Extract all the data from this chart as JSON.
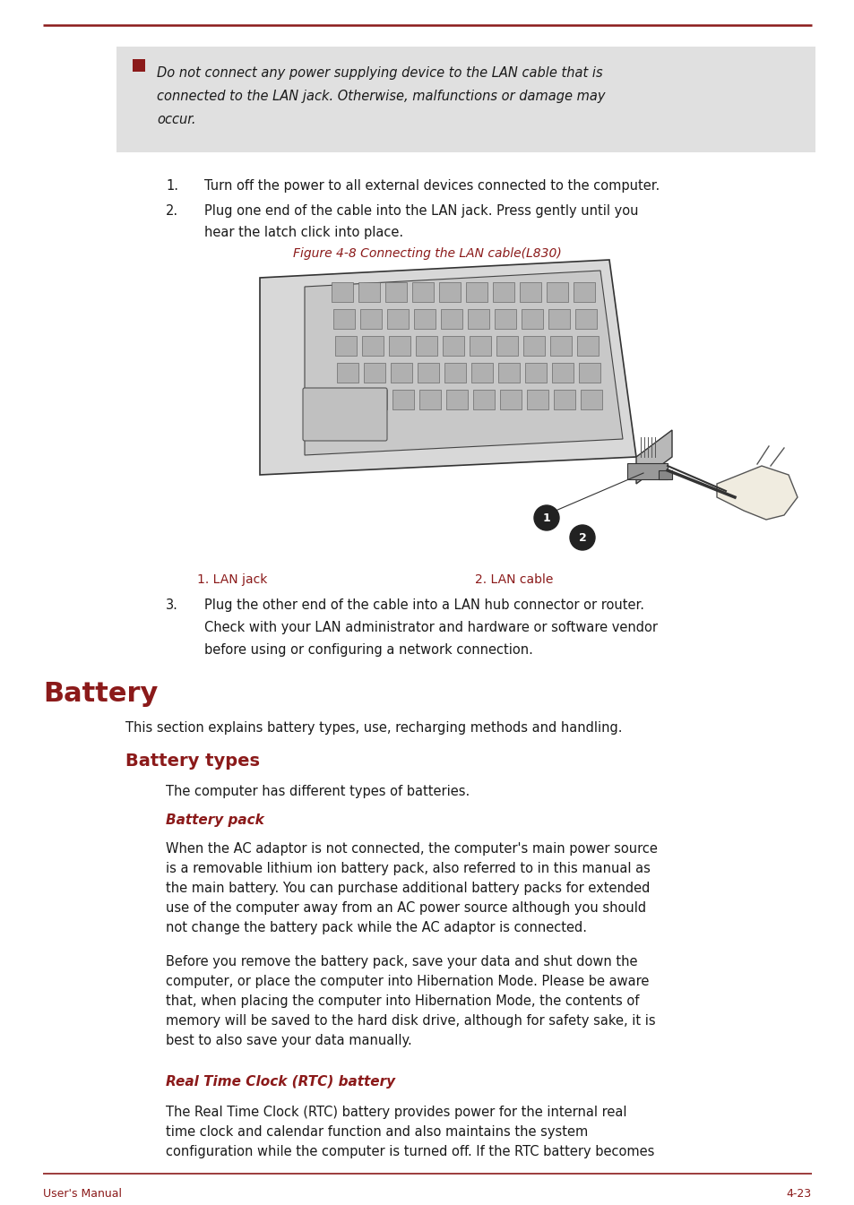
{
  "page_bg": "#ffffff",
  "dark_red": "#8B1A1A",
  "text_color": "#1a1a1a",
  "gray_bg": "#e0e0e0",
  "figure_width": 9.54,
  "figure_height": 13.45,
  "footer_left": "User's Manual",
  "footer_right": "4-23",
  "warning_line1": "Do not connect any power supplying device to the LAN cable that is",
  "warning_line2": "connected to the LAN jack. Otherwise, malfunctions or damage may",
  "warning_line3": "occur.",
  "step1": "Turn off the power to all external devices connected to the computer.",
  "step2a": "Plug one end of the cable into the LAN jack. Press gently until you",
  "step2b": "hear the latch click into place.",
  "figure_caption": "Figure 4-8 Connecting the LAN cable(L830)",
  "label1": "1. LAN jack",
  "label2": "2. LAN cable",
  "step3a": "Plug the other end of the cable into a LAN hub connector or router.",
  "step3b": "Check with your LAN administrator and hardware or software vendor",
  "step3c": "before using or configuring a network connection.",
  "section_battery": "Battery",
  "section_battery_intro": "This section explains battery types, use, recharging methods and handling.",
  "subsection_battery_types": "Battery types",
  "battery_types_intro": "The computer has different types of batteries.",
  "subsubsection_battery_pack": "Battery pack",
  "bp1a": "When the AC adaptor is not connected, the computer's main power source",
  "bp1b": "is a removable lithium ion battery pack, also referred to in this manual as",
  "bp1c": "the main battery. You can purchase additional battery packs for extended",
  "bp1d": "use of the computer away from an AC power source although you should",
  "bp1e": "not change the battery pack while the AC adaptor is connected.",
  "bp2a": "Before you remove the battery pack, save your data and shut down the",
  "bp2b": "computer, or place the computer into Hibernation Mode. Please be aware",
  "bp2c": "that, when placing the computer into Hibernation Mode, the contents of",
  "bp2d": "memory will be saved to the hard disk drive, although for safety sake, it is",
  "bp2e": "best to also save your data manually.",
  "subsubsection_rtc": "Real Time Clock (RTC) battery",
  "rtc1a": "The Real Time Clock (RTC) battery provides power for the internal real",
  "rtc1b": "time clock and calendar function and also maintains the system",
  "rtc1c": "configuration while the computer is turned off. If the RTC battery becomes"
}
